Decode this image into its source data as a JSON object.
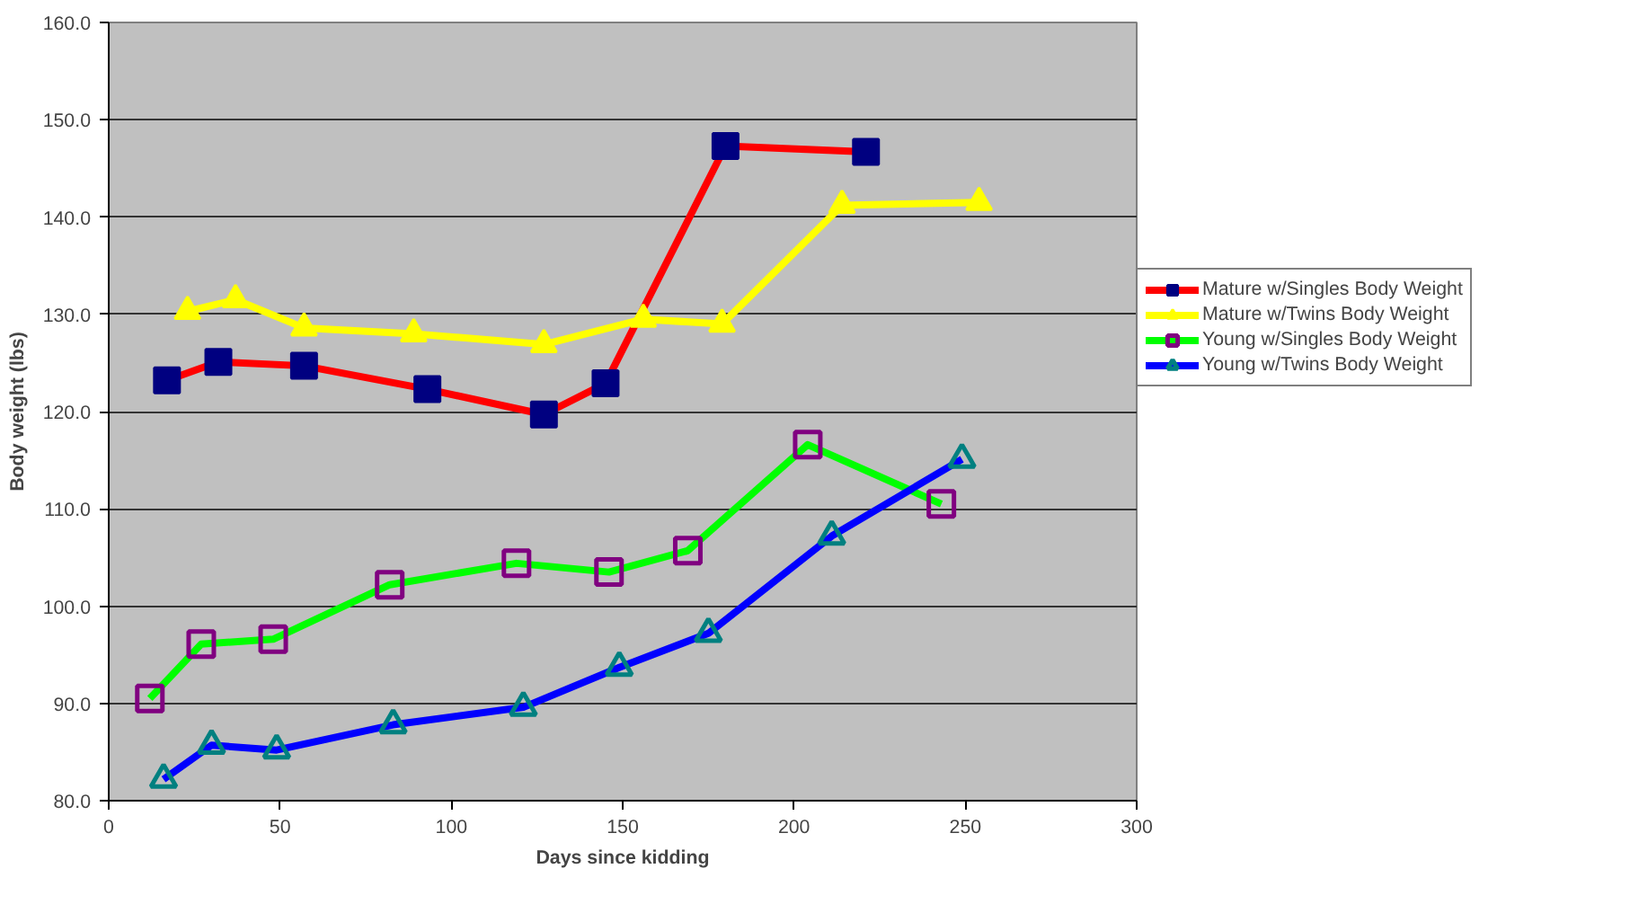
{
  "chart_data": {
    "type": "line",
    "xlabel": "Days since kidding",
    "ylabel": "Body weight (lbs)",
    "xlim": [
      0,
      300
    ],
    "xticks": [
      0,
      50,
      100,
      150,
      200,
      250,
      300
    ],
    "ylim": [
      80,
      160
    ],
    "yticks": [
      {
        "value": 80,
        "label": "80.0"
      },
      {
        "value": 90,
        "label": "90.0"
      },
      {
        "value": 100,
        "label": "100.0"
      },
      {
        "value": 110,
        "label": "110.0"
      },
      {
        "value": 120,
        "label": "120.0"
      },
      {
        "value": 130,
        "label": "130.0"
      },
      {
        "value": 140,
        "label": "140.0"
      },
      {
        "value": 150,
        "label": "150.0"
      },
      {
        "value": 160,
        "label": "160.0"
      }
    ],
    "grid": "y",
    "legend": "right",
    "line_style": "solid",
    "series": [
      {
        "name": "Mature w/Singles Body Weight",
        "color": "#ff0000",
        "marker": "square",
        "x": [
          17,
          32,
          57,
          93,
          127,
          145,
          180,
          221
        ],
        "values": [
          123.2,
          125.1,
          124.7,
          122.3,
          119.7,
          122.9,
          147.3,
          146.7
        ]
      },
      {
        "name": "Mature w/Twins Body Weight",
        "color": "#ffff00",
        "marker": "triangle",
        "x": [
          23,
          37,
          57,
          89,
          127,
          156,
          179,
          214,
          254
        ],
        "values": [
          130.3,
          131.5,
          128.6,
          128.0,
          126.9,
          129.5,
          129.0,
          141.2,
          141.5
        ]
      },
      {
        "name": "Young w/Singles Body Weight",
        "color": "#00ff00",
        "marker": "square",
        "x": [
          12,
          27,
          48,
          82,
          119,
          146,
          169,
          204,
          243
        ],
        "values": [
          90.5,
          96.1,
          96.6,
          102.2,
          104.4,
          103.5,
          105.7,
          116.6,
          110.5
        ]
      },
      {
        "name": "Young w/Twins Body Weight",
        "color": "#0000ff",
        "marker": "triangle",
        "x": [
          16,
          30,
          49,
          83,
          121,
          149,
          175,
          211,
          249
        ],
        "values": [
          82.2,
          85.7,
          85.2,
          87.8,
          89.6,
          93.7,
          97.2,
          107.2,
          115.1
        ]
      }
    ]
  }
}
